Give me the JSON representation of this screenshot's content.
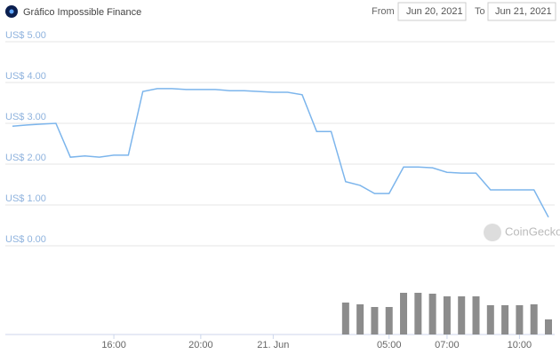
{
  "chart_data": {
    "type": "line",
    "title": "Gráfico Impossible Finance",
    "from_label": "From",
    "from_date": "Jun 20, 2021",
    "to_label": "To",
    "to_date": "Jun 21, 2021",
    "watermark": "CoinGecko",
    "categories": [
      null,
      null,
      null,
      null,
      null,
      null,
      null,
      "16:00",
      null,
      null,
      null,
      null,
      null,
      "20:00",
      null,
      null,
      null,
      null,
      "21. Jun",
      null,
      null,
      null,
      null,
      null,
      null,
      null,
      "05:00",
      null,
      null,
      null,
      "07:00",
      null,
      null,
      null,
      null,
      "10:00",
      null,
      null
    ],
    "values": [
      2.93,
      2.96,
      2.98,
      3.0,
      2.17,
      2.2,
      2.17,
      2.22,
      2.22,
      3.78,
      3.85,
      3.85,
      3.83,
      3.83,
      3.83,
      3.8,
      3.8,
      3.78,
      3.76,
      3.76,
      3.7,
      2.8,
      2.8,
      1.57,
      1.48,
      1.28,
      1.28,
      1.93,
      1.93,
      1.91,
      1.8,
      1.78,
      1.78,
      1.37,
      1.37,
      1.37,
      1.37,
      0.7
    ],
    "color": "#7cb5ec",
    "volumes": [
      null,
      null,
      null,
      null,
      null,
      null,
      null,
      null,
      null,
      null,
      null,
      null,
      null,
      null,
      null,
      null,
      null,
      null,
      null,
      null,
      null,
      null,
      null,
      36,
      34,
      31,
      31,
      47,
      47,
      46,
      43,
      43,
      43,
      33,
      33,
      33,
      34,
      17
    ],
    "volume_color": "#8c8c8c",
    "ylim": [
      0,
      5
    ],
    "yticks": [
      {
        "value": 0,
        "label": "US$ 0.00"
      },
      {
        "value": 1,
        "label": "US$ 1.00"
      },
      {
        "value": 2,
        "label": "US$ 2.00"
      },
      {
        "value": 3,
        "label": "US$ 3.00"
      },
      {
        "value": 4,
        "label": "US$ 4.00"
      },
      {
        "value": 5,
        "label": "US$ 5.00"
      }
    ],
    "grid": true
  }
}
